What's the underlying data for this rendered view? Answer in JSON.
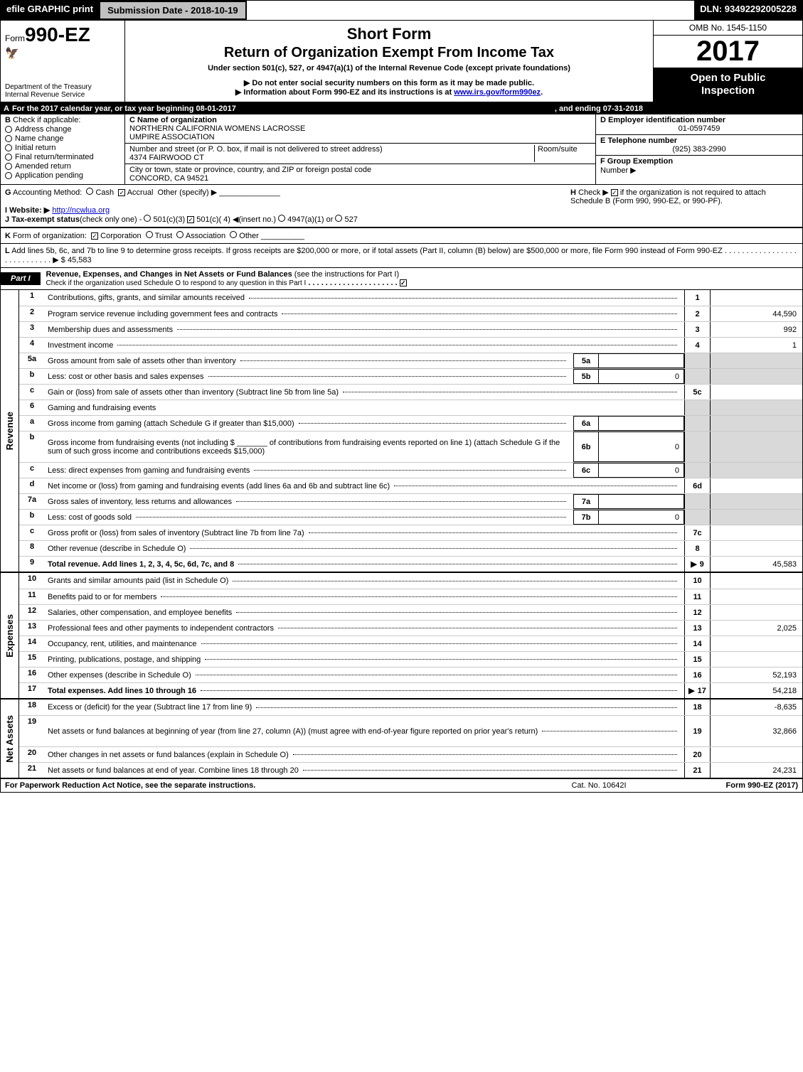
{
  "top": {
    "efile": "efile GRAPHIC print",
    "subdate": "Submission Date - 2018-10-19",
    "dln": "DLN: 93492292005228"
  },
  "header": {
    "form_prefix": "Form",
    "form_no": "990-EZ",
    "dept1": "Department of the Treasury",
    "dept2": "Internal Revenue Service",
    "short": "Short Form",
    "return": "Return of Organization Exempt From Income Tax",
    "under": "Under section 501(c), 527, or 4947(a)(1) of the Internal Revenue Code (except private foundations)",
    "ptr1": "▶ Do not enter social security numbers on this form as it may be made public.",
    "ptr2_pre": "▶ Information about Form 990-EZ and its instructions is at ",
    "ptr2_link": "www.irs.gov/form990ez",
    "ptr2_post": ".",
    "omb": "OMB No. 1545-1150",
    "year": "2017",
    "open1": "Open to Public",
    "open2": "Inspection"
  },
  "lineA": {
    "label": "A",
    "text": "For the 2017 calendar year, or tax year beginning 08-01-2017",
    "end": ", and ending 07-31-2018"
  },
  "B": {
    "label": "B",
    "check": "Check if applicable:",
    "items": [
      "Address change",
      "Name change",
      "Initial return",
      "Final return/terminated",
      "Amended return",
      "Application pending"
    ]
  },
  "C": {
    "name_lbl": "C Name of organization",
    "name1": "NORTHERN CALIFORNIA WOMENS LACROSSE",
    "name2": "UMPIRE ASSOCIATION",
    "addr_lbl": "Number and street (or P. O. box, if mail is not delivered to street address)",
    "room_lbl": "Room/suite",
    "addr": "4374 FAIRWOOD CT",
    "city_lbl": "City or town, state or province, country, and ZIP or foreign postal code",
    "city": "CONCORD, CA  94521"
  },
  "D": {
    "lbl": "D Employer identification number",
    "val": "01-0597459"
  },
  "E": {
    "lbl": "E Telephone number",
    "val": "(925) 383-2990"
  },
  "F": {
    "lbl": "F Group Exemption",
    "lbl2": "Number  ▶"
  },
  "G": {
    "label": "G",
    "text": "Accounting Method:",
    "cash": "Cash",
    "accrual": "Accrual",
    "other": "Other (specify) ▶"
  },
  "H": {
    "label": "H",
    "text": "Check ▶",
    "rest": "if the organization is not required to attach Schedule B (Form 990, 990-EZ, or 990-PF)."
  },
  "I": {
    "label": "I Website: ▶",
    "link": "http://ncwlua.org"
  },
  "J": {
    "label": "J Tax-exempt status",
    "text": "(check only one) -",
    "o1": "501(c)(3)",
    "o2": "501(c)( 4) ◀(insert no.)",
    "o3": "4947(a)(1) or",
    "o4": "527"
  },
  "K": {
    "label": "K",
    "text": "Form of organization:",
    "o1": "Corporation",
    "o2": "Trust",
    "o3": "Association",
    "o4": "Other"
  },
  "L": {
    "label": "L",
    "text": "Add lines 5b, 6c, and 7b to line 9 to determine gross receipts. If gross receipts are $200,000 or more, or if total assets (Part II, column (B) below) are $500,000 or more, file Form 990 instead of Form 990-EZ",
    "arrow": "▶ $",
    "val": "45,583"
  },
  "part1": {
    "tag": "Part I",
    "title": "Revenue, Expenses, and Changes in Net Assets or Fund Balances",
    "paren": "(see the instructions for Part I)",
    "sub": "Check if the organization used Schedule O to respond to any question in this Part I"
  },
  "sections": {
    "revenue": "Revenue",
    "expenses": "Expenses",
    "netassets": "Net Assets"
  },
  "rows": [
    {
      "n": "1",
      "d": "Contributions, gifts, grants, and similar amounts received",
      "rn": "1",
      "rv": ""
    },
    {
      "n": "2",
      "d": "Program service revenue including government fees and contracts",
      "rn": "2",
      "rv": "44,590"
    },
    {
      "n": "3",
      "d": "Membership dues and assessments",
      "rn": "3",
      "rv": "992"
    },
    {
      "n": "4",
      "d": "Investment income",
      "rn": "4",
      "rv": "1"
    },
    {
      "n": "5a",
      "d": "Gross amount from sale of assets other than inventory",
      "mn": "5a",
      "mv": "",
      "shade": true
    },
    {
      "n": "b",
      "d": "Less: cost or other basis and sales expenses",
      "mn": "5b",
      "mv": "0",
      "shade": true
    },
    {
      "n": "c",
      "d": "Gain or (loss) from sale of assets other than inventory (Subtract line 5b from line 5a)",
      "rn": "5c",
      "rv": ""
    },
    {
      "n": "6",
      "d": "Gaming and fundraising events",
      "shade": true
    },
    {
      "n": "a",
      "d": "Gross income from gaming (attach Schedule G if greater than $15,000)",
      "mn": "6a",
      "mv": "",
      "shade": true
    },
    {
      "n": "b",
      "d": "Gross income from fundraising events (not including $ _______ of contributions from fundraising events reported on line 1) (attach Schedule G if the sum of such gross income and contributions exceeds $15,000)",
      "mn": "6b",
      "mv": "0",
      "shade": true,
      "tall": true
    },
    {
      "n": "c",
      "d": "Less: direct expenses from gaming and fundraising events",
      "mn": "6c",
      "mv": "0",
      "shade": true
    },
    {
      "n": "d",
      "d": "Net income or (loss) from gaming and fundraising events (add lines 6a and 6b and subtract line 6c)",
      "rn": "6d",
      "rv": ""
    },
    {
      "n": "7a",
      "d": "Gross sales of inventory, less returns and allowances",
      "mn": "7a",
      "mv": "",
      "shade": true
    },
    {
      "n": "b",
      "d": "Less: cost of goods sold",
      "mn": "7b",
      "mv": "0",
      "shade": true
    },
    {
      "n": "c",
      "d": "Gross profit or (loss) from sales of inventory (Subtract line 7b from line 7a)",
      "rn": "7c",
      "rv": ""
    },
    {
      "n": "8",
      "d": "Other revenue (describe in Schedule O)",
      "rn": "8",
      "rv": ""
    },
    {
      "n": "9",
      "d": "Total revenue. Add lines 1, 2, 3, 4, 5c, 6d, 7c, and 8",
      "rn": "9",
      "rv": "45,583",
      "bold": true,
      "arrow": true
    },
    {
      "n": "10",
      "d": "Grants and similar amounts paid (list in Schedule O)",
      "rn": "10",
      "rv": ""
    },
    {
      "n": "11",
      "d": "Benefits paid to or for members",
      "rn": "11",
      "rv": ""
    },
    {
      "n": "12",
      "d": "Salaries, other compensation, and employee benefits",
      "rn": "12",
      "rv": ""
    },
    {
      "n": "13",
      "d": "Professional fees and other payments to independent contractors",
      "rn": "13",
      "rv": "2,025"
    },
    {
      "n": "14",
      "d": "Occupancy, rent, utilities, and maintenance",
      "rn": "14",
      "rv": ""
    },
    {
      "n": "15",
      "d": "Printing, publications, postage, and shipping",
      "rn": "15",
      "rv": ""
    },
    {
      "n": "16",
      "d": "Other expenses (describe in Schedule O)",
      "rn": "16",
      "rv": "52,193"
    },
    {
      "n": "17",
      "d": "Total expenses. Add lines 10 through 16",
      "rn": "17",
      "rv": "54,218",
      "bold": true,
      "arrow": true
    },
    {
      "n": "18",
      "d": "Excess or (deficit) for the year (Subtract line 17 from line 9)",
      "rn": "18",
      "rv": "-8,635"
    },
    {
      "n": "19",
      "d": "Net assets or fund balances at beginning of year (from line 27, column (A)) (must agree with end-of-year figure reported on prior year's return)",
      "rn": "19",
      "rv": "32,866",
      "tall": true
    },
    {
      "n": "20",
      "d": "Other changes in net assets or fund balances (explain in Schedule O)",
      "rn": "20",
      "rv": ""
    },
    {
      "n": "21",
      "d": "Net assets or fund balances at end of year. Combine lines 18 through 20",
      "rn": "21",
      "rv": "24,231"
    }
  ],
  "footer": {
    "left": "For Paperwork Reduction Act Notice, see the separate instructions.",
    "mid": "Cat. No. 10642I",
    "right": "Form 990-EZ (2017)"
  }
}
